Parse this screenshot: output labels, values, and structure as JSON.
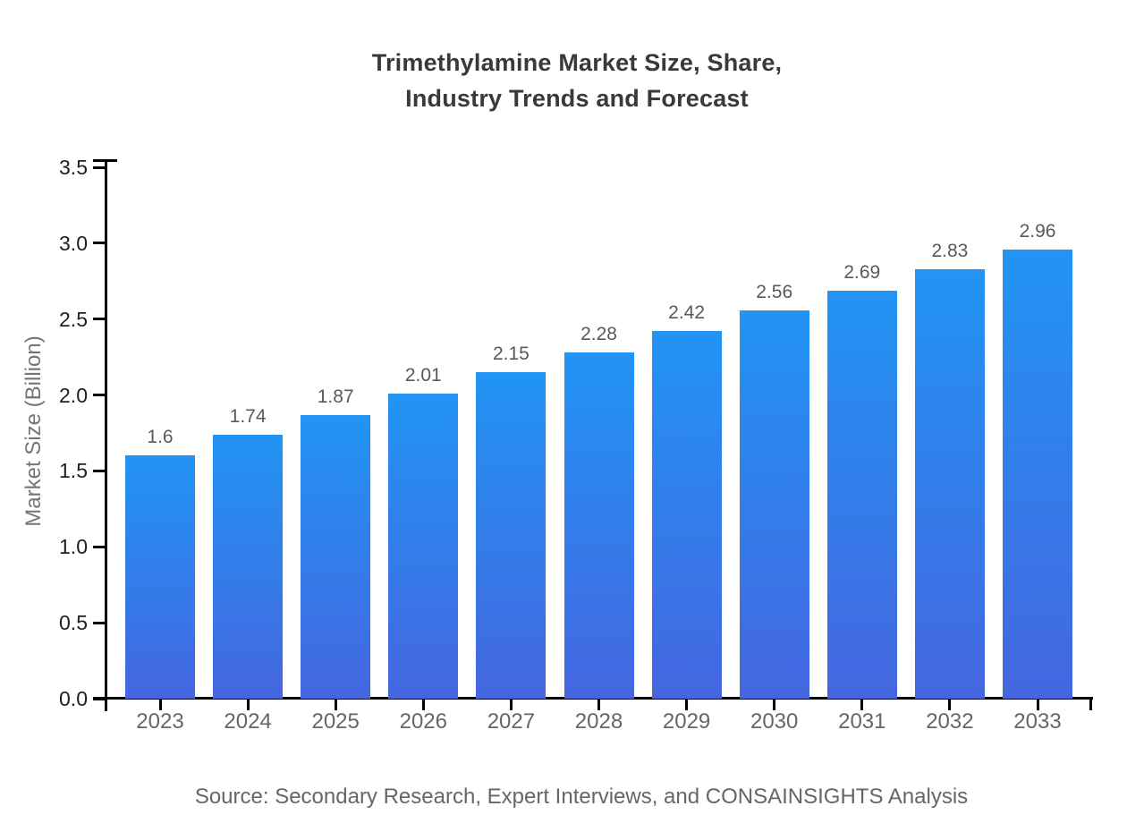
{
  "chart_data": {
    "type": "bar",
    "title": "Trimethylamine Market Size, Share,\nIndustry Trends and Forecast",
    "xlabel": "",
    "ylabel": "Market Size (Billion)",
    "categories": [
      "2023",
      "2024",
      "2025",
      "2026",
      "2027",
      "2028",
      "2029",
      "2030",
      "2031",
      "2032",
      "2033"
    ],
    "values": [
      1.6,
      1.74,
      1.87,
      2.01,
      2.15,
      2.28,
      2.42,
      2.56,
      2.69,
      2.83,
      2.96
    ],
    "value_labels": [
      "1.6",
      "1.74",
      "1.87",
      "2.01",
      "2.15",
      "2.28",
      "2.42",
      "2.56",
      "2.69",
      "2.83",
      "2.96"
    ],
    "ylim": [
      0,
      3.5
    ],
    "ytick_labels": [
      "0.0",
      "0.5",
      "1.0",
      "1.5",
      "2.0",
      "2.5",
      "3.0",
      "3.5"
    ],
    "grid": false,
    "legend": null,
    "bar_color_top": "#2194f4",
    "bar_color_bottom": "#4566e0"
  },
  "footer": {
    "source_note": "Source: Secondary Research, Expert Interviews, and CONSAINSIGHTS Analysis"
  },
  "colors": {
    "background": "#ffffff",
    "title": "#393939",
    "axis": "#000000",
    "y_tick_label": "#1f1f1f",
    "x_tick_label": "#666666",
    "value_label": "#595959",
    "axis_title": "#757575",
    "source": "#666666"
  }
}
